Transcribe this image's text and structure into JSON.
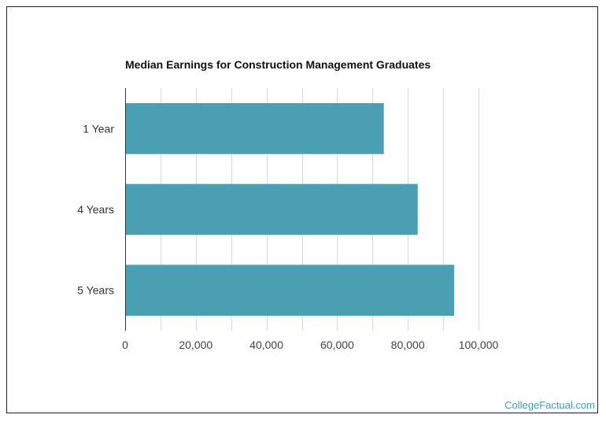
{
  "chart_data": {
    "type": "bar",
    "orientation": "horizontal",
    "title": "Median Earnings for Construction Management Graduates",
    "categories": [
      "1 Year",
      "4 Years",
      "5 Years"
    ],
    "values": [
      73200,
      82800,
      93100
    ],
    "xlim": [
      0,
      100000
    ],
    "xticks": [
      0,
      20000,
      40000,
      60000,
      80000,
      100000
    ],
    "xtick_labels": [
      "0",
      "20,000",
      "40,000",
      "60,000",
      "80,000",
      "100,000"
    ],
    "xlabel": "",
    "ylabel": "",
    "grid": true,
    "legend": "none",
    "bar_color": "#4aa0b2"
  },
  "watermark": "CollegeFactual.com"
}
